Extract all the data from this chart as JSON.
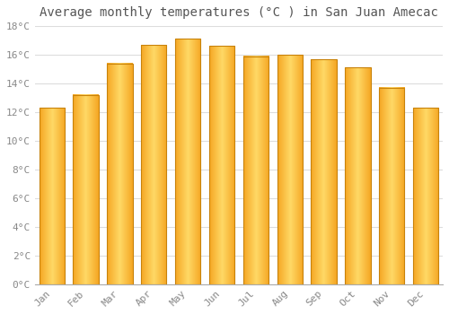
{
  "title": "Average monthly temperatures (°C ) in San Juan Amecac",
  "months": [
    "Jan",
    "Feb",
    "Mar",
    "Apr",
    "May",
    "Jun",
    "Jul",
    "Aug",
    "Sep",
    "Oct",
    "Nov",
    "Dec"
  ],
  "values": [
    12.3,
    13.2,
    15.4,
    16.7,
    17.1,
    16.6,
    15.9,
    16.0,
    15.7,
    15.1,
    13.7,
    12.3
  ],
  "bar_color_center": "#FFD966",
  "bar_color_edge": "#F5A623",
  "bar_outline_color": "#C8820A",
  "background_color": "#FFFFFF",
  "grid_color": "#DDDDDD",
  "ylim": [
    0,
    18
  ],
  "yticks": [
    0,
    2,
    4,
    6,
    8,
    10,
    12,
    14,
    16,
    18
  ],
  "title_fontsize": 10,
  "tick_fontsize": 8,
  "font_family": "monospace",
  "bar_width": 0.75
}
